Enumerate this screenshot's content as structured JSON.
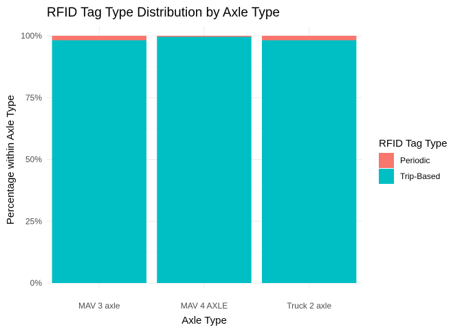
{
  "chart_data": {
    "type": "bar",
    "stacked": true,
    "title": "RFID Tag Type Distribution by Axle Type",
    "xlabel": "Axle Type",
    "ylabel": "Percentage within Axle Type",
    "categories": [
      "MAV 3 axle",
      "MAV 4 AXLE",
      "Truck 2 axle"
    ],
    "ylim": [
      0,
      100
    ],
    "yticks": [
      0,
      25,
      50,
      75,
      100
    ],
    "ytick_labels": [
      "0%",
      "25%",
      "50%",
      "75%",
      "100%"
    ],
    "grid": true,
    "legend": {
      "title": "RFID Tag Type",
      "position": "right"
    },
    "series": [
      {
        "name": "Trip-Based",
        "color": "#00BFC4",
        "values": [
          98.2,
          99.6,
          98.2
        ]
      },
      {
        "name": "Periodic",
        "color": "#F8766D",
        "values": [
          1.8,
          0.4,
          1.8
        ]
      }
    ],
    "legend_order": [
      "Periodic",
      "Trip-Based"
    ]
  }
}
